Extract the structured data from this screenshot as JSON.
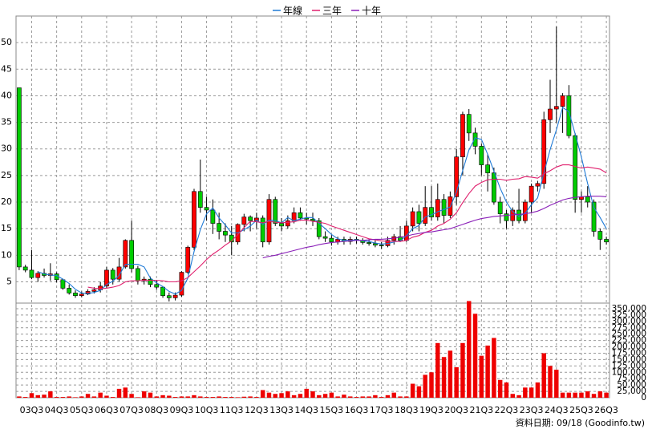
{
  "chart_data": {
    "type": "candlestick",
    "categories": [
      null,
      null,
      "03Q3",
      null,
      null,
      null,
      "04Q3",
      null,
      null,
      null,
      "05Q3",
      null,
      null,
      null,
      "06Q3",
      null,
      null,
      null,
      "07Q3",
      null,
      null,
      null,
      "08Q3",
      null,
      null,
      null,
      "09Q3",
      null,
      null,
      null,
      "10Q3",
      null,
      null,
      null,
      "11Q3",
      null,
      null,
      null,
      "12Q3",
      null,
      null,
      null,
      "13Q3",
      null,
      null,
      null,
      "14Q3",
      null,
      null,
      null,
      "15Q3",
      null,
      null,
      null,
      "16Q3",
      null,
      null,
      null,
      "17Q3",
      null,
      null,
      null,
      "18Q3",
      null,
      null,
      null,
      "19Q3",
      null,
      null,
      null,
      "20Q3",
      null,
      null,
      null,
      "21Q3",
      null,
      null,
      null,
      "22Q3",
      null,
      null,
      null,
      "23Q3",
      null,
      null,
      null,
      "24Q3",
      null,
      null,
      null,
      "25Q3",
      null,
      null,
      null,
      "26Q3"
    ],
    "ohlc": [
      [
        41.5,
        41.5,
        7.2,
        7.8
      ],
      [
        7.8,
        8.2,
        6.8,
        7.2
      ],
      [
        7.2,
        11,
        5.5,
        5.8
      ],
      [
        5.8,
        7,
        5,
        6.6
      ],
      [
        6.6,
        7.5,
        5.8,
        6.2
      ],
      [
        6.2,
        8.5,
        5.2,
        6.5
      ],
      [
        6.5,
        6.8,
        4.9,
        5.4
      ],
      [
        5.4,
        5.6,
        3.5,
        3.8
      ],
      [
        3.8,
        4.5,
        2.6,
        2.9
      ],
      [
        2.9,
        3.4,
        2,
        2.4
      ],
      [
        2.4,
        3.2,
        2.1,
        2.7
      ],
      [
        2.7,
        3.6,
        2.5,
        3.2
      ],
      [
        3.2,
        4,
        2.8,
        3.5
      ],
      [
        3.5,
        5,
        3,
        4.2
      ],
      [
        4.2,
        7.8,
        3.8,
        7.2
      ],
      [
        7.2,
        7.6,
        4.5,
        5.5
      ],
      [
        5.5,
        9.5,
        5,
        7.8
      ],
      [
        7.8,
        13,
        7.5,
        12.8
      ],
      [
        12.8,
        16.5,
        6.8,
        7.5
      ],
      [
        7.5,
        8,
        4.5,
        5.2
      ],
      [
        5.2,
        6,
        4.5,
        5.5
      ],
      [
        5.5,
        6,
        4,
        4.5
      ],
      [
        4.5,
        5.2,
        3.5,
        4
      ],
      [
        4,
        4.2,
        2,
        2.4
      ],
      [
        2.4,
        3,
        1.3,
        2
      ],
      [
        2,
        3,
        1.5,
        2.5
      ],
      [
        2.5,
        7,
        2.2,
        6.8
      ],
      [
        6.8,
        11.8,
        6.5,
        11.5
      ],
      [
        11.5,
        22.5,
        11,
        22
      ],
      [
        22,
        28,
        18,
        19
      ],
      [
        19,
        21,
        16.5,
        18.5
      ],
      [
        18.5,
        20.5,
        14,
        16
      ],
      [
        16,
        18,
        13,
        14.5
      ],
      [
        14.5,
        16,
        12.5,
        13.8
      ],
      [
        13.8,
        15.5,
        10,
        12.5
      ],
      [
        12.5,
        16,
        12,
        15.8
      ],
      [
        15.8,
        17.8,
        14.5,
        17.2
      ],
      [
        17.2,
        17.5,
        14.5,
        16.5
      ],
      [
        16.5,
        18,
        15,
        17
      ],
      [
        17,
        17.5,
        11.5,
        12.5
      ],
      [
        12.5,
        21.5,
        12,
        20.5
      ],
      [
        20.5,
        21,
        15.5,
        16
      ],
      [
        16,
        17,
        14.5,
        15.5
      ],
      [
        15.5,
        17.5,
        15,
        16.5
      ],
      [
        16.5,
        19,
        16,
        18
      ],
      [
        18,
        19,
        16.5,
        17
      ],
      [
        17,
        18,
        15.8,
        16.8
      ],
      [
        16.8,
        18,
        15.5,
        16.5
      ],
      [
        16.5,
        17,
        13,
        13.5
      ],
      [
        13.5,
        14.5,
        12.5,
        13.2
      ],
      [
        13.2,
        13.8,
        11.8,
        12.5
      ],
      [
        12.5,
        13.5,
        12,
        13
      ],
      [
        13,
        13.5,
        12,
        12.6
      ],
      [
        12.6,
        13.5,
        12,
        13
      ],
      [
        13,
        13.5,
        12.2,
        12.8
      ],
      [
        12.8,
        13.2,
        12,
        12.4
      ],
      [
        12.4,
        13,
        11.8,
        12.2
      ],
      [
        12.2,
        12.8,
        11.5,
        11.9
      ],
      [
        11.9,
        12.5,
        11.2,
        11.8
      ],
      [
        11.8,
        13.5,
        11.5,
        12.8
      ],
      [
        12.8,
        14,
        12,
        13.5
      ],
      [
        13.5,
        15.5,
        12.5,
        12.8
      ],
      [
        12.8,
        16.5,
        12.5,
        15.5
      ],
      [
        15.5,
        19,
        14.5,
        18.2
      ],
      [
        18.2,
        19.5,
        14.5,
        16
      ],
      [
        16,
        23,
        15.5,
        19
      ],
      [
        19,
        23,
        16.5,
        17.2
      ],
      [
        17.2,
        23.5,
        16.5,
        20.5
      ],
      [
        20.5,
        21.5,
        16,
        17.5
      ],
      [
        17.5,
        22,
        17,
        21
      ],
      [
        21,
        30,
        19.5,
        28.5
      ],
      [
        28.5,
        37,
        25,
        36.5
      ],
      [
        36.5,
        37.5,
        31.5,
        33
      ],
      [
        33,
        34,
        29,
        30.5
      ],
      [
        30.5,
        31,
        25,
        27
      ],
      [
        27,
        29,
        22,
        25.5
      ],
      [
        25.5,
        26.5,
        19.5,
        20
      ],
      [
        20,
        21,
        16,
        17.8
      ],
      [
        17.8,
        18.5,
        15,
        16.5
      ],
      [
        16.5,
        19,
        15.5,
        18.5
      ],
      [
        18.5,
        22.5,
        16,
        16.5
      ],
      [
        16.5,
        20.5,
        16,
        20
      ],
      [
        20,
        23.5,
        18,
        23
      ],
      [
        23,
        24,
        22,
        23.5
      ],
      [
        23.5,
        37,
        22.5,
        35.5
      ],
      [
        35.5,
        43,
        33,
        37.5
      ],
      [
        37.5,
        53,
        35,
        38
      ],
      [
        38,
        40.5,
        33,
        40
      ],
      [
        40,
        42,
        32,
        32.5
      ],
      [
        32.5,
        33,
        18,
        20.5
      ],
      [
        20.5,
        22,
        18,
        21
      ],
      [
        21,
        23,
        19,
        20
      ],
      [
        20,
        20.5,
        13.5,
        14.5
      ],
      [
        14.5,
        15,
        11,
        13
      ],
      [
        13,
        13.5,
        12,
        12.5
      ]
    ],
    "up_color": "#ff0000",
    "down_color": "#00cc00",
    "series": [
      {
        "name": "年線",
        "color": "#1f7ad6",
        "values": [
          null,
          null,
          null,
          6.9,
          6.5,
          6.3,
          6.2,
          5.5,
          4.7,
          3.6,
          2.9,
          2.8,
          3.0,
          3.4,
          4.5,
          5.1,
          6.2,
          8.3,
          8.3,
          8.3,
          7.8,
          5.7,
          4.8,
          4.1,
          3.2,
          2.7,
          3.4,
          5.7,
          10.7,
          14.8,
          17.8,
          18.9,
          17.0,
          15.7,
          14.2,
          14.2,
          14.8,
          15.5,
          16.6,
          15.8,
          16.6,
          16.5,
          16.1,
          17.1,
          16.5,
          16.8,
          17.1,
          17.1,
          16.0,
          15.0,
          13.9,
          13.1,
          12.8,
          12.8,
          12.9,
          12.7,
          12.6,
          12.3,
          12.1,
          12.2,
          12.5,
          12.7,
          13.7,
          15.0,
          15.6,
          17.2,
          17.6,
          18.2,
          18.6,
          19.1,
          21.9,
          25.9,
          29.8,
          32.1,
          31.8,
          29.0,
          25.8,
          22.6,
          20.0,
          18.2,
          17.3,
          17.9,
          19.5,
          20.8,
          25.5,
          29.9,
          33.6,
          37.8,
          37.0,
          32.8,
          28.5,
          23.5,
          19.0,
          17.1,
          15.0
        ]
      },
      {
        "name": "三年",
        "color": "#e0206e",
        "values": [
          null,
          null,
          null,
          null,
          null,
          null,
          null,
          null,
          null,
          null,
          null,
          4.0,
          3.8,
          3.7,
          3.8,
          4.0,
          4.3,
          5.0,
          5.2,
          5.2,
          5.3,
          5.3,
          5.3,
          5.2,
          5.0,
          5.0,
          5.2,
          5.8,
          6.9,
          8.0,
          9.2,
          10.2,
          11.0,
          11.9,
          12.7,
          13.9,
          15.2,
          16.4,
          16.3,
          16.1,
          16.4,
          16.2,
          16.1,
          16.2,
          16.3,
          16.6,
          16.6,
          16.4,
          16.2,
          16.0,
          15.5,
          15.1,
          14.7,
          14.3,
          13.9,
          13.5,
          13.1,
          12.9,
          12.7,
          12.6,
          12.6,
          12.6,
          12.8,
          13.4,
          13.7,
          14.3,
          14.7,
          15.5,
          16.0,
          16.8,
          18.0,
          19.9,
          21.6,
          23.0,
          23.7,
          24.2,
          24.3,
          24.3,
          24.1,
          24.3,
          24.4,
          24.8,
          24.7,
          24.5,
          25.3,
          25.9,
          26.6,
          27.0,
          27.0,
          26.7,
          26.4,
          26.6,
          26.4,
          26.2,
          25.5
        ]
      },
      {
        "name": "十年",
        "color": "#8a1fb8",
        "values": [
          null,
          null,
          null,
          null,
          null,
          null,
          null,
          null,
          null,
          null,
          null,
          null,
          null,
          null,
          null,
          null,
          null,
          null,
          null,
          null,
          null,
          null,
          null,
          null,
          null,
          null,
          null,
          null,
          null,
          null,
          null,
          null,
          null,
          null,
          null,
          null,
          null,
          null,
          null,
          9.5,
          9.8,
          10.0,
          10.3,
          10.6,
          10.9,
          11.2,
          11.5,
          11.7,
          12.0,
          12.2,
          12.4,
          12.5,
          12.6,
          12.7,
          12.8,
          12.8,
          12.9,
          13.0,
          13.0,
          13.1,
          13.2,
          13.4,
          13.6,
          13.9,
          14.1,
          14.3,
          14.4,
          14.6,
          14.8,
          15.0,
          15.4,
          15.8,
          16.2,
          16.6,
          16.9,
          17.1,
          17.3,
          17.4,
          17.5,
          17.6,
          17.7,
          17.8,
          18.0,
          18.3,
          18.8,
          19.4,
          19.9,
          20.4,
          20.7,
          20.9,
          21.0,
          21.1,
          21.1,
          21.1,
          21.0
        ]
      }
    ],
    "ylim": [
      1,
      55
    ],
    "yticks": [
      5,
      10,
      15,
      20,
      25,
      30,
      35,
      40,
      45,
      50
    ],
    "volume": {
      "color": "#ee0000",
      "axis": "y2",
      "values": [
        5000,
        3000,
        18000,
        10000,
        12000,
        25000,
        3000,
        3000,
        5000,
        2000,
        5000,
        15000,
        5000,
        20000,
        8000,
        3000,
        35000,
        40000,
        15000,
        2000,
        25000,
        20000,
        5000,
        10000,
        8000,
        3000,
        5000,
        5000,
        10000,
        5000,
        3000,
        3000,
        5000,
        3000,
        3000,
        2000,
        4000,
        5000,
        3000,
        30000,
        20000,
        15000,
        18000,
        25000,
        10000,
        15000,
        35000,
        25000,
        10000,
        15000,
        20000,
        5000,
        12000,
        5000,
        3000,
        5000,
        5000,
        10000,
        3000,
        10000,
        20000,
        5000,
        5000,
        55000,
        45000,
        90000,
        100000,
        215000,
        160000,
        185000,
        120000,
        215000,
        380000,
        330000,
        165000,
        205000,
        235000,
        70000,
        60000,
        15000,
        10000,
        40000,
        40000,
        60000,
        175000,
        125000,
        110000,
        20000,
        20000,
        20000,
        20000,
        25000,
        15000,
        25000,
        20000
      ]
    },
    "y2lim": [
      0,
      372000
    ],
    "y2ticks": [
      0,
      {
        "value": 25000,
        "label": "25,000"
      },
      {
        "value": 50000,
        "label": "50,000"
      },
      {
        "value": 75000,
        "label": "75,000"
      },
      {
        "value": 100000,
        "label": "100,000"
      },
      {
        "value": 125000,
        "label": "125,000"
      },
      {
        "value": 150000,
        "label": "150,000"
      },
      {
        "value": 175000,
        "label": "175,000"
      },
      {
        "value": 200000,
        "label": "200,000"
      },
      {
        "value": 225000,
        "label": "225,000"
      },
      {
        "value": 250000,
        "label": "250,000"
      },
      {
        "value": 275000,
        "label": "275,000"
      },
      {
        "value": 300000,
        "label": "300,000"
      },
      {
        "value": 325000,
        "label": "325,000"
      },
      {
        "value": 350000,
        "label": "350,000"
      }
    ],
    "grid": true,
    "footnote": "資料日期: 09/18 (Goodinfo.tw)"
  }
}
